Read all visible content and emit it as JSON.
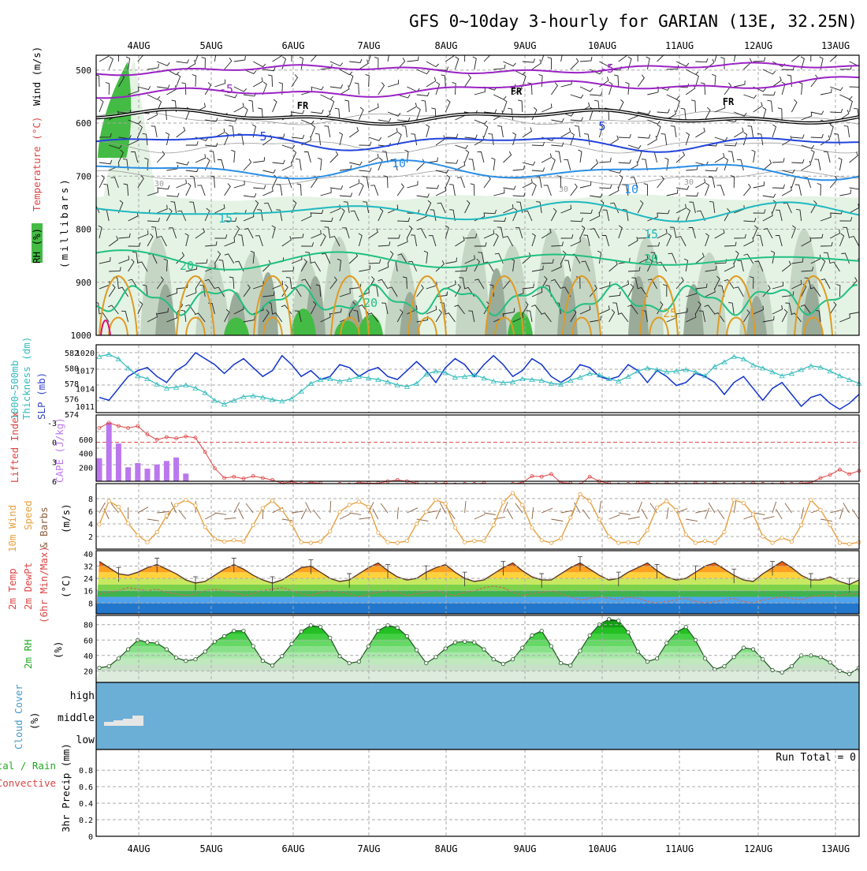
{
  "title": "GFS 0~10day 3-hourly for GARIAN (13E, 32.25N)",
  "dates": [
    "4AUG",
    "5AUG",
    "6AUG",
    "7AUG",
    "8AUG",
    "9AUG",
    "10AUG",
    "11AUG",
    "12AUG",
    "13AUG"
  ],
  "colors": {
    "rh_green": "#44bb44",
    "rh_light": "#e4f3e4",
    "rh_mid": "#c5d6c5",
    "rh_dark": "#9aab9a",
    "purple": "#9a22c4",
    "black": "#000000",
    "blue5": "#2244dd",
    "blue10": "#2a8ee6",
    "cyan15": "#1fb8c0",
    "teal20": "#20c080",
    "orange25": "#e09a22",
    "magenta": "#dd1177",
    "slp_blue": "#1133cc",
    "thick_cyan": "#33bbbb",
    "cape_purple": "#bb77ee",
    "li_red": "#dd4444",
    "wind_orange": "#e8a040",
    "barb_brown": "#8a6040",
    "cloud_blue": "#6baed6",
    "cloud_grey": "#e6e6e6"
  },
  "panels": {
    "upper": {
      "ylabel": "(millibars)",
      "side_labels": [
        "RH (%)",
        "Temperature (°C)",
        "Wind (m/s)"
      ],
      "y_ticks": [
        "500",
        "600",
        "700",
        "800",
        "900",
        "1000"
      ],
      "contour_labels": {
        "m5a": "-5",
        "m5b": "-5",
        "fr1": "FR",
        "fr2": "FR",
        "fr3": "FR",
        "p5a": "5",
        "p5b": "5",
        "p10a": "10",
        "p10b": "10",
        "p15a": "15",
        "p15b": "15",
        "p20a": "20",
        "p20b": "20",
        "p20c": "20",
        "p25": "25",
        "r30a": "30",
        "r30b": "30",
        "r30c": "30",
        "r30d": "30"
      }
    },
    "slp": {
      "left_labels": [
        "1000~500mb",
        "Thickness (dm)"
      ],
      "right_label": "SLP (mb)",
      "thick_ticks": [
        "582",
        "580",
        "578",
        "576",
        "574"
      ],
      "slp_ticks": [
        "1020",
        "1017",
        "1014",
        "1011"
      ]
    },
    "cape": {
      "left_label": "Lifted Index",
      "right_label": "CAPE (J/kg)",
      "li_ticks": [
        "-3",
        "0",
        "3",
        "6"
      ],
      "cape_ticks": [
        "600",
        "400",
        "200"
      ]
    },
    "wind": {
      "labels": [
        "10m Wind",
        "Speed",
        "& Barbs"
      ],
      "unit": "(m/s)",
      "ticks": [
        "8",
        "6",
        "4",
        "2"
      ]
    },
    "temp": {
      "labels": [
        "2m Temp",
        "2m DewPt",
        "(6hr Min/Max)"
      ],
      "unit": "(°C)",
      "ticks": [
        "40",
        "32",
        "24",
        "16",
        "8"
      ]
    },
    "rh": {
      "label": "2m RH",
      "unit": "(%)",
      "ticks": [
        "80",
        "60",
        "40",
        "20"
      ]
    },
    "cloud": {
      "labels": [
        "Cloud Cover",
        "(%)"
      ],
      "levels": [
        "high",
        "middle",
        "low"
      ]
    },
    "precip": {
      "labels": [
        "Total / Rain",
        "Convective",
        "3hr Precip (mm)"
      ],
      "ticks": [
        "0.8",
        "0.6",
        "0.4",
        "0.2",
        "0"
      ],
      "run_total": "Run Total = 0"
    }
  },
  "chart_data": [
    {
      "type": "line",
      "title": "GFS 0~10day 3-hourly for GARIAN (13E, 32.25N)",
      "ylabel": "SLP (mb) / 1000~500mb Thickness (dm)",
      "series": [
        {
          "name": "SLP (mb)",
          "values": [
            1012.5,
            1012,
            1014,
            1016,
            1017,
            1017.5,
            1016,
            1015,
            1017,
            1018,
            1020,
            1019,
            1018,
            1016.5,
            1018,
            1019,
            1017.5,
            1016,
            1017,
            1019.5,
            1018,
            1016,
            1017,
            1015.5,
            1016,
            1018,
            1017.5,
            1016,
            1017,
            1017.5,
            1016,
            1015.5,
            1017,
            1018.5,
            1017,
            1015,
            1017.5,
            1019,
            1018,
            1016,
            1018,
            1019.5,
            1018,
            1016,
            1017,
            1019,
            1018,
            1016,
            1015,
            1016,
            1018,
            1017.5,
            1016,
            1015.5,
            1016,
            1018,
            1017,
            1015,
            1017,
            1016,
            1014.5,
            1015,
            1016.5,
            1016,
            1015,
            1013,
            1015,
            1016,
            1014,
            1012,
            1014,
            1015,
            1013,
            1011,
            1012.5,
            1013,
            1011.5,
            1010.5,
            1011.5,
            1013
          ]
        },
        {
          "name": "Thickness (dm)",
          "values": [
            581.5,
            581.8,
            581.2,
            580,
            579,
            578.6,
            577.9,
            577.4,
            577.5,
            577.8,
            577.4,
            576.8,
            575.8,
            575.3,
            575.8,
            576.3,
            576.4,
            576.2,
            575.9,
            575.7,
            576,
            577,
            578,
            578.5,
            578.6,
            578.3,
            578.5,
            578.9,
            578.7,
            578.5,
            578.2,
            577.8,
            577.6,
            578,
            579.2,
            579.6,
            579.4,
            578.8,
            578.9,
            579.1,
            578.7,
            578.3,
            578.1,
            578.2,
            578.6,
            578.5,
            578.4,
            578,
            577.9,
            578.4,
            578.8,
            579.3,
            579.1,
            578.6,
            578.3,
            578.9,
            579.6,
            580,
            579.8,
            579.5,
            579.6,
            579.8,
            579.5,
            579,
            580.2,
            580.8,
            581.5,
            581.2,
            580.4,
            580,
            579.5,
            579,
            579.3,
            579.8,
            580.3,
            580.1,
            579.6,
            579,
            578.5,
            578
          ]
        }
      ]
    },
    {
      "type": "bar",
      "ylabel": "CAPE (J/kg)",
      "series": [
        {
          "name": "CAPE (J/kg)",
          "values": [
            330,
            840,
            540,
            200,
            260,
            180,
            240,
            290,
            340,
            110,
            0,
            0,
            0,
            0,
            0,
            0,
            0,
            0,
            0,
            0,
            0,
            0,
            0,
            0,
            0,
            0,
            0,
            0,
            0,
            0,
            0,
            0,
            0,
            0,
            0,
            0,
            0,
            0,
            0,
            0,
            0,
            0,
            0,
            0,
            0,
            0,
            0,
            0,
            0,
            0,
            0,
            0,
            0,
            0,
            0,
            0,
            0,
            0,
            0,
            0,
            0,
            0,
            0,
            0,
            0,
            0,
            0,
            0,
            0,
            0,
            0,
            0,
            0,
            0,
            0,
            0,
            0,
            0,
            0,
            0
          ]
        },
        {
          "name": "Lifted Index",
          "values": [
            -2.2,
            -3,
            -2.5,
            -2.2,
            -2.5,
            -1.2,
            -0.4,
            -0.8,
            -0.6,
            -0.9,
            -0.7,
            1.5,
            4,
            5.5,
            5.3,
            5.6,
            5.2,
            5.5,
            5.8,
            6.3,
            6.1,
            6.4,
            6.2,
            6.3,
            6.6,
            6.4,
            6.5,
            6.2,
            6.3,
            6.3,
            6,
            5.8,
            6,
            6.3,
            6.5,
            6.4,
            6.3,
            6.5,
            6.4,
            6.4,
            6.3,
            6.6,
            6.6,
            6.4,
            6.2,
            5.2,
            5.3,
            4.9,
            6.2,
            6.3,
            6.5,
            5.3,
            6,
            6.3,
            6.5,
            6.4,
            6.3,
            6.2,
            6.5,
            6.3,
            6.4,
            6.5,
            6.3,
            6.4,
            6.3,
            6.4,
            6.5,
            6.4,
            6.3,
            6.4,
            6.5,
            6.3,
            6.4,
            6.3,
            6.2,
            5.5,
            5,
            4.2,
            4.9,
            4.4
          ]
        }
      ]
    },
    {
      "type": "line",
      "ylabel": "10m Wind Speed (m/s)",
      "series": [
        {
          "name": "10m Wind Speed",
          "values": [
            3.9,
            7.6,
            6.7,
            4.1,
            2.2,
            1.1,
            2.7,
            5.3,
            7,
            7.8,
            6.9,
            3.5,
            1.6,
            1.2,
            1.4,
            1.2,
            3.8,
            6.5,
            7.7,
            6.2,
            4,
            1.1,
            1,
            1.2,
            2.8,
            5.9,
            7,
            7.5,
            6.7,
            2.6,
            1.1,
            1,
            1.3,
            4,
            5.9,
            7.8,
            7.2,
            3.4,
            1.1,
            1.3,
            1.3,
            3.8,
            7.4,
            8.9,
            7,
            3.4,
            1.4,
            1,
            1.7,
            5,
            8.7,
            7.6,
            4.7,
            2,
            1,
            1.1,
            1,
            3,
            6.6,
            7.6,
            6.2,
            2.3,
            1,
            1.3,
            1,
            2.7,
            7.8,
            7.3,
            5.5,
            2,
            1,
            1.8,
            1.2,
            3.8,
            7.8,
            6.2,
            3.8,
            1,
            0.8,
            1.1
          ]
        }
      ]
    },
    {
      "type": "line",
      "ylabel": "2m Temp / DewPt (°C)",
      "series": [
        {
          "name": "2m Temp",
          "values": [
            35,
            31,
            27,
            26,
            28,
            31,
            33,
            30,
            27,
            23,
            21,
            22,
            26,
            30,
            33,
            30,
            26,
            23,
            21,
            23,
            27,
            31,
            32,
            28,
            24,
            22,
            23,
            27,
            31,
            34,
            29,
            25,
            23,
            24,
            28,
            31,
            33,
            28,
            24,
            22,
            23,
            27,
            31,
            34,
            29,
            25,
            23,
            23,
            27,
            31,
            34,
            30,
            26,
            23,
            24,
            28,
            31,
            34,
            29,
            25,
            23,
            24,
            28,
            32,
            34,
            30,
            26,
            23,
            22,
            27,
            31,
            35,
            31,
            26,
            23,
            23,
            25,
            22,
            20,
            23
          ]
        },
        {
          "name": "2m DewPt",
          "values": [
            14,
            15,
            16,
            18,
            17,
            16,
            17,
            15,
            14,
            13,
            14,
            16,
            17,
            16,
            15,
            13,
            14,
            16,
            17,
            18,
            16,
            14,
            13,
            15,
            16,
            15,
            14,
            12,
            14,
            15,
            16,
            15,
            13,
            14,
            15,
            16,
            14,
            13,
            15,
            16,
            18,
            19,
            18,
            15,
            13,
            14,
            15,
            16,
            14,
            12,
            10,
            11,
            12,
            11,
            10,
            12,
            11,
            9,
            8,
            9,
            10,
            11,
            9,
            8,
            9,
            10,
            11,
            9,
            8,
            10,
            11,
            12,
            11,
            10,
            12,
            13,
            14,
            13,
            14,
            14
          ]
        }
      ]
    },
    {
      "type": "area",
      "ylabel": "2m RH (%)",
      "series": [
        {
          "name": "2m RH",
          "values": [
            24,
            26,
            36,
            48,
            60,
            57,
            56,
            48,
            37,
            33,
            35,
            45,
            58,
            65,
            72,
            72,
            52,
            33,
            27,
            39,
            55,
            71,
            79,
            77,
            63,
            39,
            30,
            32,
            52,
            72,
            79,
            76,
            65,
            47,
            30,
            38,
            49,
            57,
            58,
            57,
            48,
            35,
            29,
            35,
            50,
            66,
            72,
            52,
            30,
            27,
            46,
            66,
            80,
            87,
            85,
            70,
            45,
            32,
            36,
            56,
            70,
            77,
            60,
            36,
            22,
            26,
            38,
            50,
            48,
            35,
            21,
            18,
            26,
            40,
            40,
            38,
            31,
            20,
            16,
            24
          ]
        }
      ]
    },
    {
      "type": "bar",
      "ylabel": "3hr Precip (mm)",
      "ylim": [
        0,
        1
      ],
      "series": [
        {
          "name": "3hr Precip",
          "values": [
            0,
            0,
            0,
            0,
            0,
            0,
            0,
            0,
            0,
            0,
            0,
            0,
            0,
            0,
            0,
            0,
            0,
            0,
            0,
            0,
            0,
            0,
            0,
            0,
            0,
            0,
            0,
            0,
            0,
            0,
            0,
            0,
            0,
            0,
            0,
            0,
            0,
            0,
            0,
            0,
            0,
            0,
            0,
            0,
            0,
            0,
            0,
            0,
            0,
            0,
            0,
            0,
            0,
            0,
            0,
            0,
            0,
            0,
            0,
            0,
            0,
            0,
            0,
            0,
            0,
            0,
            0,
            0,
            0,
            0,
            0,
            0,
            0,
            0,
            0,
            0,
            0,
            0,
            0,
            0
          ]
        }
      ]
    }
  ]
}
